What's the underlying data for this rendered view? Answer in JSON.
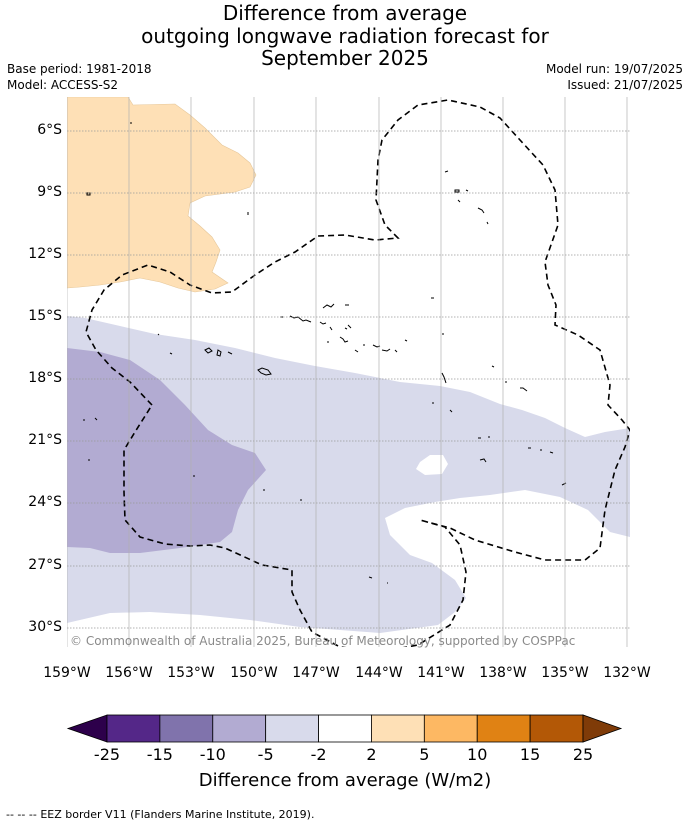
{
  "title_lines": [
    "Difference from average",
    "outgoing longwave radiation forecast for",
    "September 2025"
  ],
  "meta": {
    "base_period": "Base period: 1981-2018",
    "model": "Model: ACCESS-S2",
    "model_run": "Model run: 19/07/2025",
    "issued": "Issued: 21/07/2025"
  },
  "map": {
    "lon_labels": [
      "159°W",
      "156°W",
      "153°W",
      "150°W",
      "147°W",
      "144°W",
      "141°W",
      "138°W",
      "135°W",
      "132°W"
    ],
    "lat_labels": [
      "6°S",
      "9°S",
      "12°S",
      "15°S",
      "18°S",
      "21°S",
      "24°S",
      "27°S",
      "30°S"
    ],
    "extent": {
      "lon_min": -159,
      "lon_max": -132,
      "lat_top": -4.5,
      "lat_bottom": -31.0
    },
    "copyright": "© Commonwealth of Australia 2025, Bureau of Meteorology, supported by COSPPac",
    "regions": [
      {
        "name": "anomaly-2-to-5",
        "range": "2 to 5",
        "color": "#fee0b6"
      },
      {
        "name": "anomaly-minus5-to-minus2",
        "range": "-5 to -2",
        "color": "#d8daeb"
      },
      {
        "name": "anomaly-minus10-to-minus5",
        "range": "-10 to -5",
        "color": "#b2abd2"
      }
    ]
  },
  "colorbar": {
    "label": "Difference from average (W/m2)",
    "ticks": [
      "-25",
      "-15",
      "-10",
      "-5",
      "-2",
      "2",
      "5",
      "10",
      "15",
      "25"
    ],
    "colors": [
      "#2d004b",
      "#542788",
      "#8073ac",
      "#b2abd2",
      "#d8daeb",
      "#ffffff",
      "#fee0b6",
      "#fdb863",
      "#e08214",
      "#b35806",
      "#7f3b08"
    ]
  },
  "eez_legend": {
    "symbol": "--  --  --",
    "text": "EEZ border V11 (Flanders Marine Institute, 2019)."
  }
}
